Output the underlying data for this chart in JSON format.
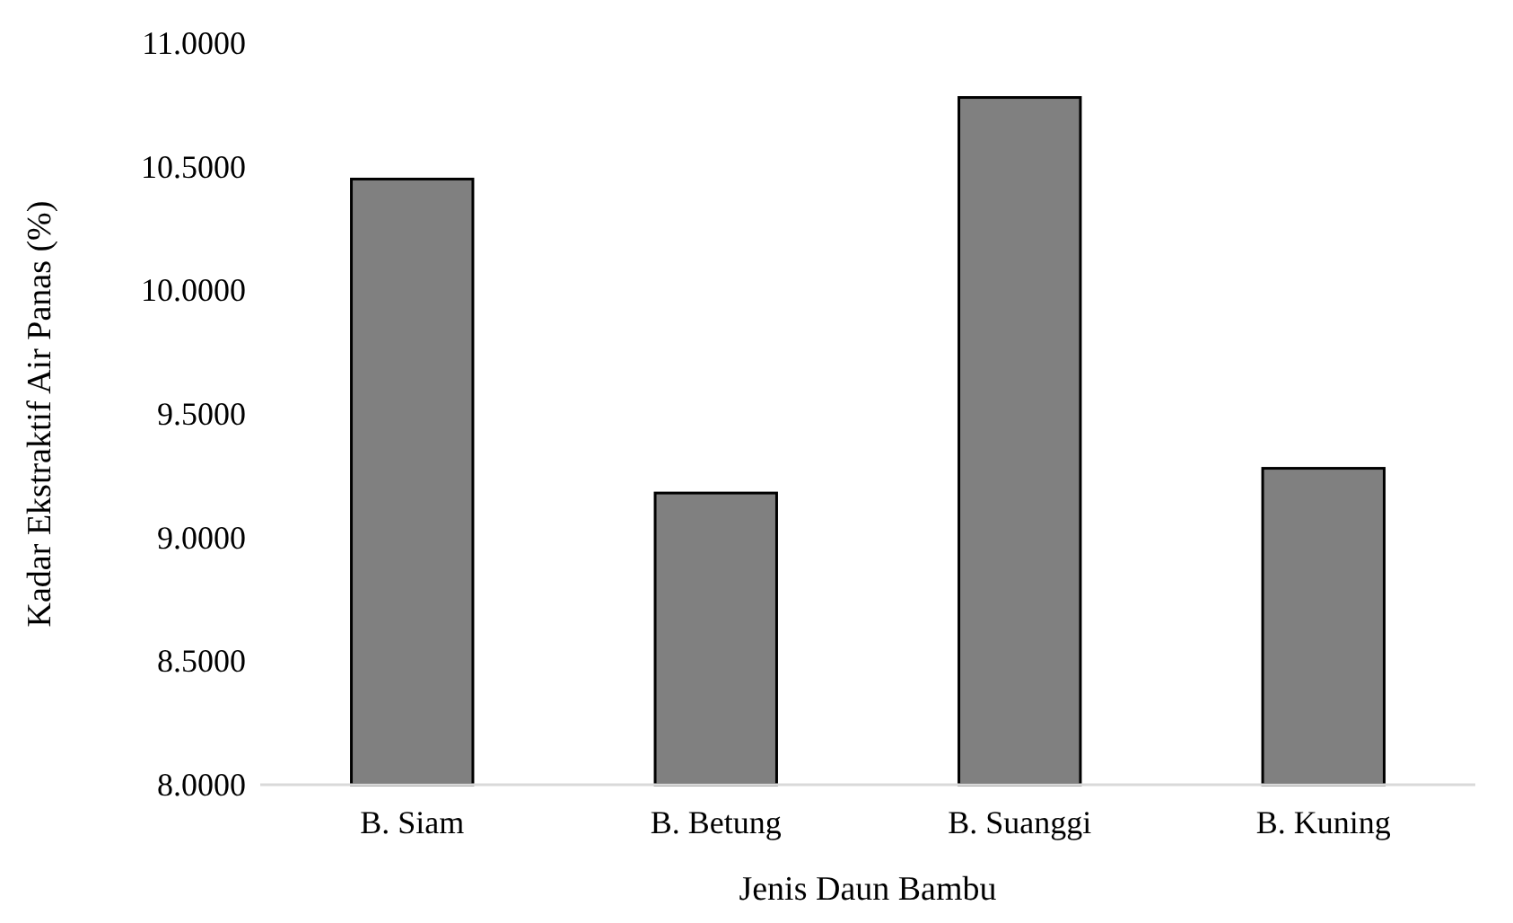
{
  "chart_data": {
    "type": "bar",
    "xlabel": "Jenis Daun Bambu",
    "ylabel": "Kadar Ekstraktif Air Panas (%)",
    "categories": [
      "B. Siam",
      "B. Betung",
      "B. Suanggi",
      "B. Kuning"
    ],
    "values": [
      10.45,
      9.18,
      10.78,
      9.28
    ],
    "color": "#808080",
    "ylim": [
      8,
      11
    ],
    "yticks": [
      {
        "value": 8,
        "label": "8.0000"
      },
      {
        "value": 8.5,
        "label": "8.5000"
      },
      {
        "value": 9,
        "label": "9.0000"
      },
      {
        "value": 9.5,
        "label": "9.5000"
      },
      {
        "value": 10,
        "label": "10.0000"
      },
      {
        "value": 10.5,
        "label": "10.5000"
      },
      {
        "value": 11,
        "label": "11.0000"
      }
    ],
    "grid": false
  }
}
